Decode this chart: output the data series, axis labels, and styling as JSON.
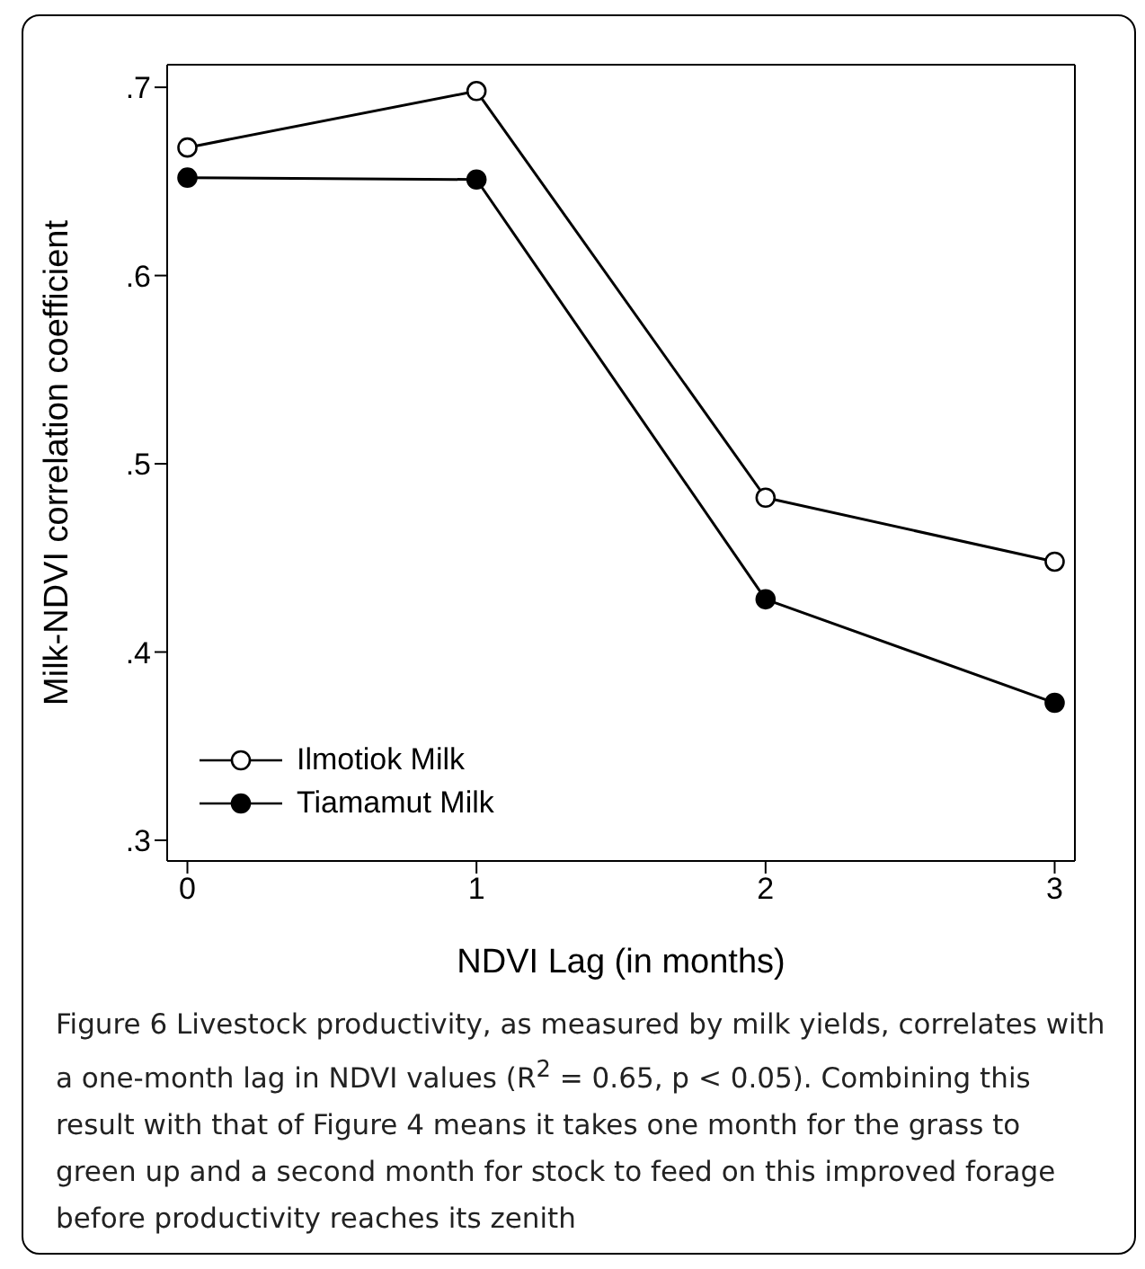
{
  "chart_data": {
    "type": "line",
    "xlabel": "NDVI Lag (in months)",
    "ylabel": "Milk-NDVI correlation coefficient",
    "x": [
      0,
      1,
      2,
      3
    ],
    "series": [
      {
        "name": "Ilmotiok Milk",
        "color": "#000000",
        "values": [
          0.668,
          0.698,
          0.482,
          0.448
        ]
      },
      {
        "name": "Tiamamut Milk",
        "color": "#000000",
        "values": [
          0.652,
          0.651,
          0.428,
          0.373
        ]
      }
    ],
    "xlim": [
      -0.07,
      3.07
    ],
    "xticks": [
      0,
      1,
      2,
      3
    ],
    "ylim": [
      0.289,
      0.712
    ],
    "yticks": [
      {
        "value": 0.3,
        "label": ".3"
      },
      {
        "value": 0.4,
        "label": ".4"
      },
      {
        "value": 0.5,
        "label": ".5"
      },
      {
        "value": 0.6,
        "label": ".6"
      },
      {
        "value": 0.7,
        "label": ".7"
      }
    ],
    "grid": false,
    "legend": "bottom left",
    "marker": "circle",
    "line_style": "solid",
    "annotations": [
      "Figure 6 Livestock productivity, as measured by milk yields, correlates with a one-month lag in NDVI values (R$^{2}$ = 0.65, p < 0.05). Combining this result with that of Figure 4 means it takes one month for the grass to green up and a second month for stock to feed on this improved forage before productivity reaches its zenith"
    ]
  }
}
